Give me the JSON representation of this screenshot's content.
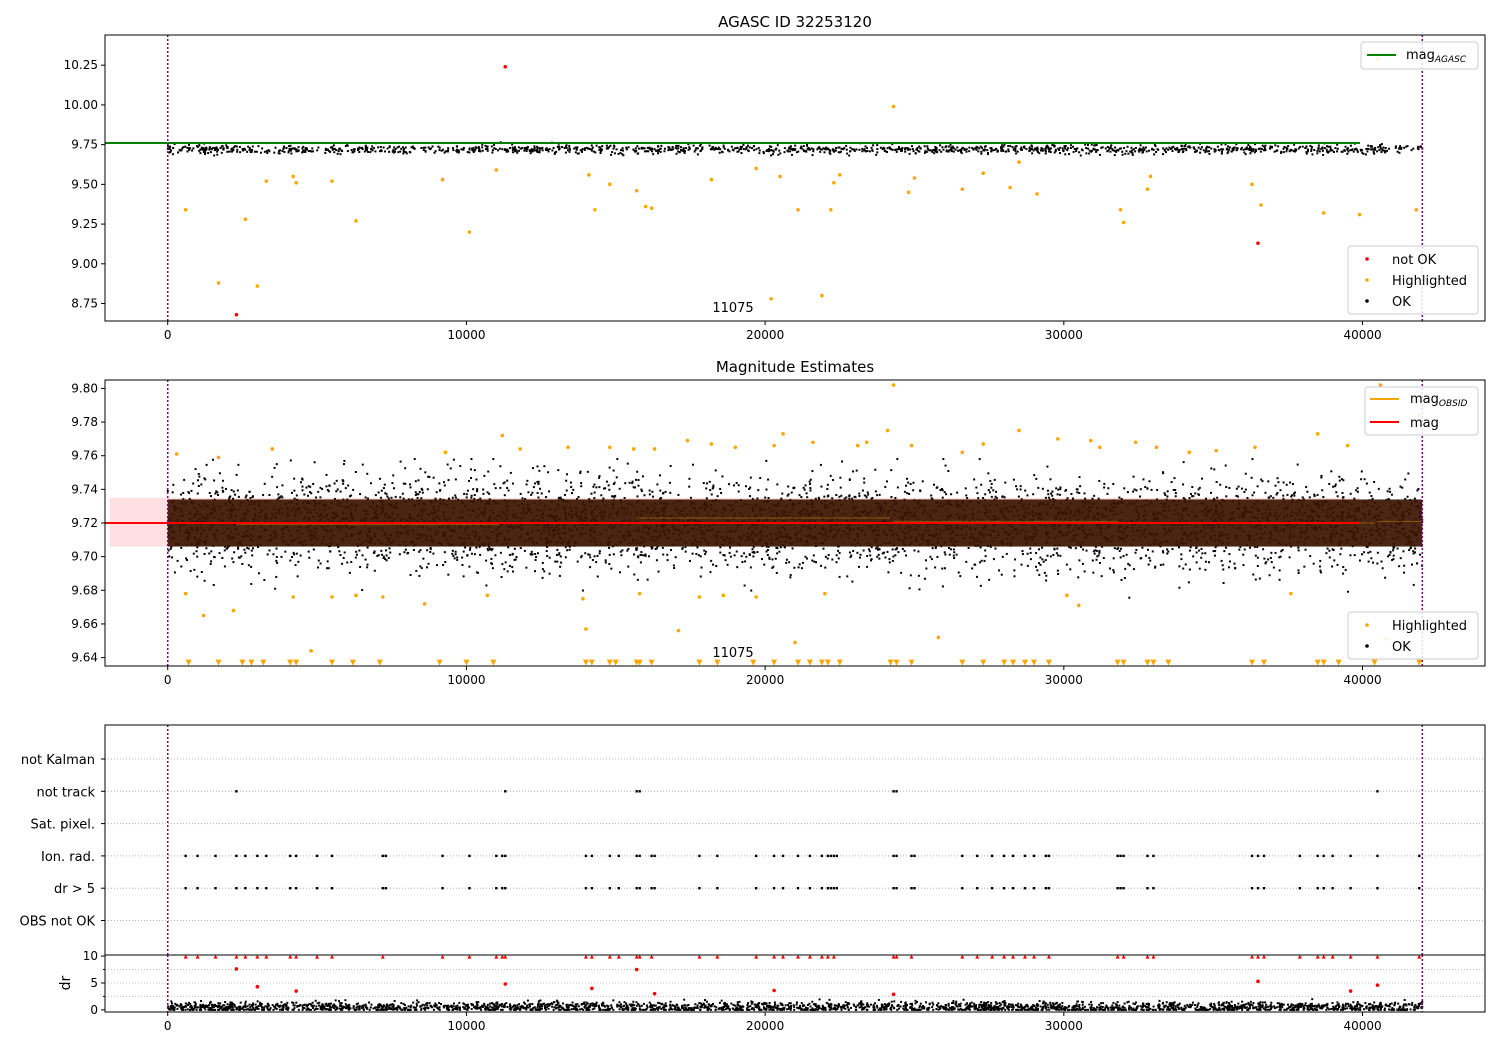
{
  "chart_data": [
    {
      "type": "scatter",
      "title": "AGASC ID 32253120",
      "xlabel": "",
      "ylabel": "",
      "xlim": [
        -2100,
        44100
      ],
      "ylim": [
        8.64,
        10.44
      ],
      "x_ticks": [
        0,
        10000,
        20000,
        30000,
        40000
      ],
      "x_tick_labels": [
        "0",
        "10000",
        "20000",
        "30000",
        "40000"
      ],
      "y_ticks": [
        8.75,
        9.0,
        9.25,
        9.5,
        9.75,
        10.0,
        10.25
      ],
      "y_tick_labels": [
        "8.75",
        "9.00",
        "9.25",
        "9.50",
        "9.75",
        "10.00",
        "10.25"
      ],
      "vlines": [
        0,
        42000
      ],
      "hline": {
        "name": "mag_AGASC",
        "value": 9.76,
        "x_range": [
          -2100,
          44100
        ],
        "color": "#008000"
      },
      "annotation": {
        "text": "11075",
        "x": 21000,
        "y": 8.66
      },
      "legend_lines": [
        {
          "main": "mag",
          "sub": "AGASC",
          "color": "#008000"
        }
      ],
      "legend_points": [
        {
          "label": "not OK",
          "color": "#ff0000"
        },
        {
          "label": "Highlighted",
          "color": "#ffa500"
        },
        {
          "label": "OK",
          "color": "#000000"
        }
      ],
      "band": {
        "center": 9.72,
        "spread": 0.014,
        "n": 1400
      },
      "series": [
        {
          "name": "not OK",
          "color": "#ff0000",
          "x": [
            2300,
            11300,
            36500
          ],
          "y": [
            8.68,
            10.24,
            9.13
          ]
        },
        {
          "name": "Highlighted",
          "color": "#ffa500",
          "x": [
            600,
            1700,
            2600,
            3000,
            3300,
            4200,
            4300,
            5500,
            6300,
            9200,
            10100,
            11000,
            14100,
            14300,
            14800,
            15700,
            16000,
            16200,
            18200,
            19700,
            20200,
            20500,
            21100,
            21900,
            22200,
            22300,
            22500,
            24300,
            24800,
            25000,
            26600,
            27300,
            28200,
            28500,
            29100,
            31900,
            32000,
            32800,
            32900,
            36300,
            36600,
            38700,
            39900,
            40500,
            41800
          ],
          "y": [
            9.34,
            8.88,
            9.28,
            8.86,
            9.52,
            9.55,
            9.51,
            9.52,
            9.27,
            9.53,
            9.2,
            9.59,
            9.56,
            9.34,
            9.5,
            9.46,
            9.36,
            9.35,
            9.53,
            9.6,
            8.78,
            9.55,
            9.34,
            8.8,
            9.34,
            9.51,
            9.56,
            9.99,
            9.45,
            9.54,
            9.47,
            9.57,
            9.48,
            9.64,
            9.44,
            9.34,
            9.26,
            9.47,
            9.55,
            9.5,
            9.37,
            9.32,
            9.31,
            10.29,
            9.34
          ]
        }
      ]
    },
    {
      "type": "scatter",
      "title": "Magnitude Estimates",
      "xlabel": "",
      "ylabel": "",
      "xlim": [
        -2100,
        44100
      ],
      "ylim": [
        9.635,
        9.805
      ],
      "x_ticks": [
        0,
        10000,
        20000,
        30000,
        40000
      ],
      "x_tick_labels": [
        "0",
        "10000",
        "20000",
        "30000",
        "40000"
      ],
      "y_ticks": [
        9.64,
        9.66,
        9.68,
        9.7,
        9.72,
        9.74,
        9.76,
        9.78,
        9.8
      ],
      "y_tick_labels": [
        "9.64",
        "9.66",
        "9.68",
        "9.70",
        "9.72",
        "9.74",
        "9.76",
        "9.78",
        "9.80"
      ],
      "vlines": [
        0,
        42000
      ],
      "hline": {
        "name": "mag",
        "value": 9.72,
        "x_range": [
          -2100,
          44100
        ],
        "color": "#ff0000"
      },
      "error_band": {
        "low": 9.706,
        "high": 9.735,
        "color": "#ffdfe1"
      },
      "annotation": {
        "text": "11075",
        "x": 21000,
        "y": 9.637
      },
      "legend_lines": [
        {
          "main": "mag",
          "sub": "OBSID",
          "color": "#ffa500"
        },
        {
          "main": "mag",
          "sub": "",
          "color": "#ff0000"
        }
      ],
      "legend_points": [
        {
          "label": "Highlighted",
          "color": "#ffa500"
        },
        {
          "label": "OK",
          "color": "#000000"
        }
      ],
      "band": {
        "center": 9.72,
        "spread": 0.014,
        "n": 4500
      },
      "obsid_segments": [
        {
          "x0": 0,
          "x1": 2200,
          "y": 9.72
        },
        {
          "x0": 2300,
          "x1": 11100,
          "y": 9.719
        },
        {
          "x0": 11200,
          "x1": 15600,
          "y": 9.72
        },
        {
          "x0": 15700,
          "x1": 24200,
          "y": 9.723
        },
        {
          "x0": 24300,
          "x1": 31800,
          "y": 9.721
        },
        {
          "x0": 31900,
          "x1": 40400,
          "y": 9.72
        },
        {
          "x0": 40500,
          "x1": 42000,
          "y": 9.721
        }
      ],
      "series": [
        {
          "name": "Highlighted",
          "color": "#ffa500",
          "x": [
            300,
            600,
            1200,
            1700,
            2200,
            3500,
            4200,
            4800,
            5500,
            6300,
            7200,
            8600,
            9300,
            10700,
            11200,
            11800,
            13400,
            13900,
            14000,
            14800,
            15600,
            15800,
            16300,
            17100,
            17400,
            17800,
            18200,
            18600,
            19000,
            19700,
            20300,
            20600,
            21000,
            21600,
            22000,
            23100,
            23400,
            24100,
            24300,
            24900,
            25800,
            26600,
            27300,
            28500,
            29800,
            30100,
            30500,
            30900,
            31200,
            32400,
            33100,
            34200,
            35100,
            36400,
            37600,
            38500,
            39500,
            40600,
            40800,
            41900
          ],
          "y": [
            9.761,
            9.678,
            9.665,
            9.759,
            9.668,
            9.764,
            9.676,
            9.644,
            9.676,
            9.677,
            9.676,
            9.672,
            9.762,
            9.677,
            9.772,
            9.764,
            9.765,
            9.675,
            9.657,
            9.765,
            9.764,
            9.678,
            9.764,
            9.656,
            9.769,
            9.676,
            9.767,
            9.677,
            9.765,
            9.676,
            9.766,
            9.773,
            9.649,
            9.768,
            9.678,
            9.766,
            9.768,
            9.775,
            9.802,
            9.766,
            9.652,
            9.762,
            9.767,
            9.775,
            9.77,
            9.677,
            9.671,
            9.769,
            9.765,
            9.768,
            9.765,
            9.762,
            9.763,
            9.765,
            9.678,
            9.773,
            9.766,
            9.802,
            9.651,
            9.784
          ]
        },
        {
          "name": "Highlighted (clipped)",
          "color": "#ffa500",
          "x": [
            700,
            1700,
            2500,
            2800,
            3200,
            4100,
            4300,
            5500,
            6200,
            7100,
            9100,
            10000,
            10900,
            14000,
            14200,
            14800,
            15000,
            15700,
            15800,
            16200,
            17800,
            18400,
            19600,
            20300,
            21100,
            21500,
            21900,
            22100,
            22500,
            24200,
            24400,
            24900,
            26600,
            27300,
            28000,
            28300,
            28700,
            29000,
            29500,
            31800,
            32000,
            32800,
            33000,
            33500,
            36300,
            36700,
            38500,
            38700,
            39200,
            40400,
            41900
          ],
          "y": [
            9.637,
            9.637,
            9.637,
            9.637,
            9.637,
            9.637,
            9.637,
            9.637,
            9.637,
            9.637,
            9.637,
            9.637,
            9.637,
            9.637,
            9.637,
            9.637,
            9.637,
            9.637,
            9.637,
            9.637,
            9.637,
            9.637,
            9.637,
            9.637,
            9.637,
            9.637,
            9.637,
            9.637,
            9.637,
            9.637,
            9.637,
            9.637,
            9.637,
            9.637,
            9.637,
            9.637,
            9.637,
            9.637,
            9.637,
            9.637,
            9.637,
            9.637,
            9.637,
            9.637,
            9.637,
            9.637,
            9.637,
            9.637,
            9.637,
            9.637,
            9.637
          ]
        }
      ]
    },
    {
      "type": "scatter",
      "title": "",
      "xlabel": "",
      "ylabel": "",
      "xlim": [
        -2100,
        44100
      ],
      "flag_labels": [
        "not Kalman",
        "not track",
        "Sat. pixel.",
        "Ion. rad.",
        "dr > 5",
        "OBS not OK"
      ],
      "vlines": [
        0,
        42000
      ],
      "flags": [
        {
          "name": "not track",
          "x": [
            2300,
            11300,
            15700,
            15800,
            24300,
            24400,
            40500
          ]
        },
        {
          "name": "Ion. rad.",
          "x": [
            600,
            1000,
            1600,
            2300,
            2600,
            3000,
            3300,
            4100,
            4300,
            5000,
            5500,
            7200,
            7300,
            9200,
            10100,
            11000,
            11200,
            11300,
            14000,
            14200,
            14800,
            15100,
            15700,
            15800,
            16200,
            16300,
            17800,
            18400,
            19700,
            20300,
            20600,
            21100,
            21500,
            21900,
            22100,
            22200,
            22300,
            22400,
            24300,
            24400,
            24900,
            25000,
            26600,
            27100,
            27600,
            28000,
            28300,
            28700,
            29000,
            29400,
            29500,
            31800,
            31900,
            32000,
            32800,
            33000,
            36300,
            36500,
            36700,
            37900,
            38500,
            38700,
            39000,
            39600,
            40500,
            41900
          ]
        },
        {
          "name": "dr > 5",
          "x": [
            600,
            1000,
            1600,
            2300,
            2600,
            3000,
            3300,
            4100,
            4300,
            5000,
            5500,
            7200,
            7300,
            9200,
            10100,
            11000,
            11200,
            11300,
            14000,
            14200,
            14800,
            15100,
            15700,
            15800,
            16200,
            16300,
            17800,
            18400,
            19700,
            20300,
            20600,
            21100,
            21500,
            21900,
            22100,
            22200,
            22300,
            22400,
            24300,
            24400,
            24900,
            25000,
            26600,
            27100,
            27600,
            28000,
            28300,
            28700,
            29000,
            29400,
            29500,
            31800,
            31900,
            32000,
            32800,
            33000,
            36300,
            36500,
            36700,
            37900,
            38500,
            38700,
            39000,
            39600,
            40500,
            41900
          ]
        }
      ]
    },
    {
      "type": "scatter",
      "title": "",
      "xlabel": "",
      "ylabel": "dr",
      "xlim": [
        -2100,
        44100
      ],
      "ylim": [
        -0.4,
        10.2
      ],
      "x_ticks": [
        0,
        10000,
        20000,
        30000,
        40000
      ],
      "x_tick_labels": [
        "0",
        "10000",
        "20000",
        "30000",
        "40000"
      ],
      "y_ticks": [
        0,
        5,
        10
      ],
      "y_tick_labels": [
        "0",
        "5",
        "10"
      ],
      "vlines": [
        0,
        42000
      ],
      "series": [
        {
          "name": "dr > 5 (clipped)",
          "color": "#ff0000",
          "x": [
            600,
            1000,
            1600,
            2300,
            2600,
            3000,
            3300,
            4100,
            4300,
            5000,
            5500,
            7200,
            9200,
            10100,
            11000,
            11200,
            11300,
            14000,
            14200,
            14800,
            15100,
            15700,
            15800,
            16200,
            17800,
            18400,
            19700,
            20300,
            20600,
            21100,
            21500,
            21900,
            22100,
            22300,
            24300,
            24400,
            24900,
            26600,
            27100,
            27600,
            28000,
            28300,
            28700,
            29000,
            29500,
            31800,
            32000,
            32800,
            33000,
            36300,
            36500,
            36700,
            37900,
            38500,
            38700,
            39000,
            39600,
            40500,
            41900
          ],
          "y": [
            9.9,
            9.9,
            9.9,
            9.9,
            9.9,
            9.9,
            9.9,
            9.9,
            9.9,
            9.9,
            9.9,
            9.9,
            9.9,
            9.9,
            9.9,
            9.9,
            9.9,
            9.9,
            9.9,
            9.9,
            9.9,
            9.9,
            9.9,
            9.9,
            9.9,
            9.9,
            9.9,
            9.9,
            9.9,
            9.9,
            9.9,
            9.9,
            9.9,
            9.9,
            9.9,
            9.9,
            9.9,
            9.9,
            9.9,
            9.9,
            9.9,
            9.9,
            9.9,
            9.9,
            9.9,
            9.9,
            9.9,
            9.9,
            9.9,
            9.9,
            9.9,
            9.9,
            9.9,
            9.9,
            9.9,
            9.9,
            9.9,
            9.9,
            9.9
          ]
        },
        {
          "name": "dr (elevated)",
          "color": "#ff0000",
          "x": [
            2300,
            3000,
            4300,
            11300,
            14200,
            15700,
            16300,
            20300,
            24300,
            36500,
            39600,
            40500
          ],
          "y": [
            7.6,
            4.3,
            3.5,
            4.8,
            4.0,
            7.5,
            3.0,
            3.6,
            2.9,
            5.3,
            3.5,
            4.6
          ]
        },
        {
          "name": "dr OK",
          "color": "#000000",
          "band": {
            "center": 0.5,
            "spread": 0.5,
            "n": 2600
          }
        }
      ]
    }
  ]
}
